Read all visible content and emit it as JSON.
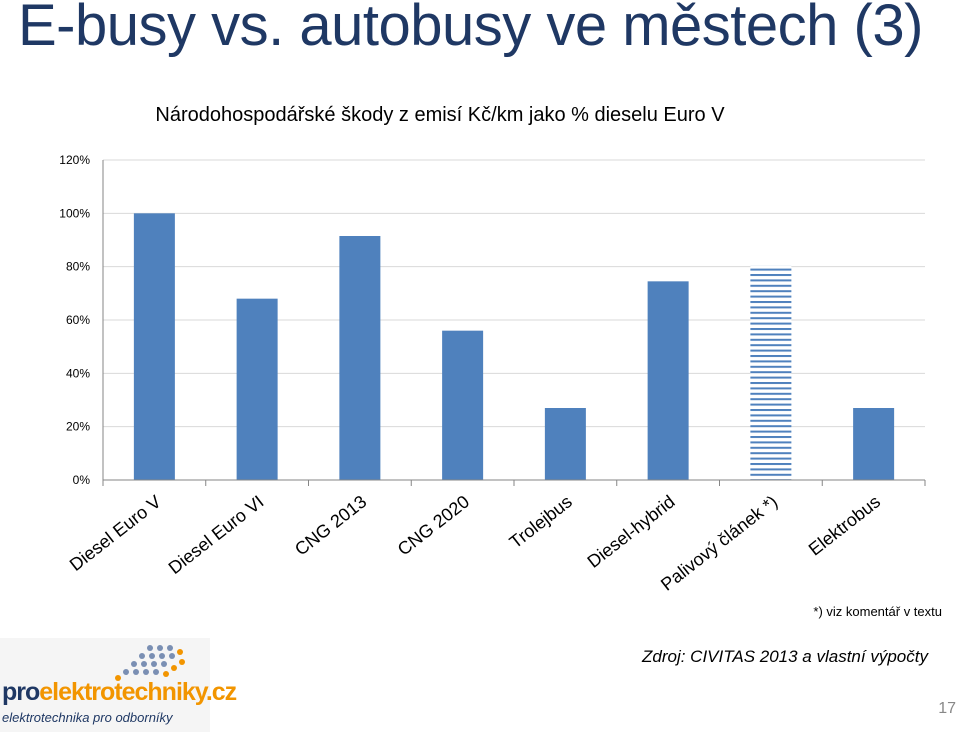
{
  "slide": {
    "title": "E-busy vs. autobusy ve městech (3)",
    "footnote": "*) viz komentář v textu",
    "source": "Zdroj: CIVITAS 2013 a vlastní výpočty",
    "page_number": "17"
  },
  "logo": {
    "brand_prefix": "pro",
    "brand_rest": "elektrotechniky.cz",
    "tagline": "elektrotechnika pro odborníky"
  },
  "chart_data": {
    "type": "bar",
    "title": "Národohospodářské škody z emisí Kč/km jako % dieselu Euro V",
    "categories": [
      "Diesel Euro V",
      "Diesel Euro VI",
      "CNG 2013",
      "CNG 2020",
      "Trolejbus",
      "Diesel-hybrid",
      "Palivový článek *)",
      "Elektrobus"
    ],
    "values": [
      100,
      68,
      91.5,
      56,
      27,
      74.5,
      80.5,
      27
    ],
    "hatched": [
      false,
      false,
      false,
      false,
      false,
      false,
      true,
      false
    ],
    "ylim": [
      0,
      120
    ],
    "yticks": [
      "0%",
      "20%",
      "40%",
      "60%",
      "80%",
      "100%",
      "120%"
    ],
    "grid": true,
    "colors": {
      "bar": "#4f81bd",
      "hatch": "#4f81bd",
      "grid": "#d9d9d9",
      "axis": "#868686"
    }
  }
}
